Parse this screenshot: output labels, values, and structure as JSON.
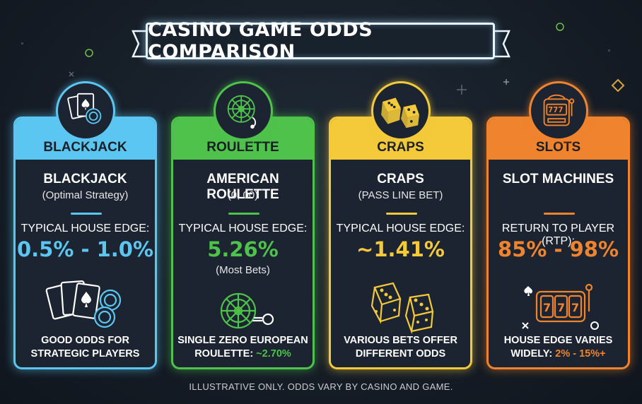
{
  "title": "CASINO GAME ODDS COMPARISON",
  "colors": {
    "blackjack": "#5cc6f2",
    "roulette": "#4fc24b",
    "craps": "#f4c93a",
    "slots": "#f0832e"
  },
  "cards": [
    {
      "key": "blackjack",
      "band_label": "BLACKJACK",
      "icon": "playing-cards-chip-icon",
      "name": "BLACKJACK",
      "subtitle": "(Optimal Strategy)",
      "metric_label": "TYPICAL HOUSE EDGE:",
      "metric_value": "0.5% - 1.0%",
      "metric_note": "",
      "illustration": "cards-and-chips-icon",
      "footer_line1": "GOOD ODDS FOR",
      "footer_line2": "STRATEGIC PLAYERS",
      "footer_accent": ""
    },
    {
      "key": "roulette",
      "band_label": "ROULETTE",
      "icon": "roulette-wheel-icon",
      "name": "AMERICAN ROULETTE",
      "subtitle": "(0, 00)",
      "metric_label": "TYPICAL HOUSE EDGE:",
      "metric_value": "5.26%",
      "metric_note": "(Most Bets)",
      "illustration": "roulette-wheel-ball-icon",
      "footer_line1": "SINGLE ZERO EUROPEAN",
      "footer_line2": "ROULETTE: ",
      "footer_accent": "~2.70%"
    },
    {
      "key": "craps",
      "band_label": "CRAPS",
      "icon": "dice-pair-icon",
      "name": "CRAPS",
      "subtitle": "(PASS LINE BET)",
      "metric_label": "TYPICAL HOUSE EDGE:",
      "metric_value": "~1.41%",
      "metric_note": "",
      "illustration": "dice-outline-icon",
      "footer_line1": "VARIOUS BETS OFFER",
      "footer_line2": "DIFFERENT ODDS",
      "footer_accent": ""
    },
    {
      "key": "slots",
      "band_label": "SLOTS",
      "icon": "slot-machine-icon",
      "name": "SLOT MACHINES",
      "subtitle": "",
      "metric_label": "RETURN TO PLAYER (RTP):",
      "metric_value": "85% - 98%",
      "metric_note": "",
      "illustration": "slot-reels-777-icon",
      "footer_line1": "HOUSE EDGE VARIES",
      "footer_line2": "WIDELY: ",
      "footer_accent": "2% - 15%+"
    }
  ],
  "disclaimer": "ILLUSTRATIVE ONLY. ODDS VARY BY CASINO AND GAME."
}
